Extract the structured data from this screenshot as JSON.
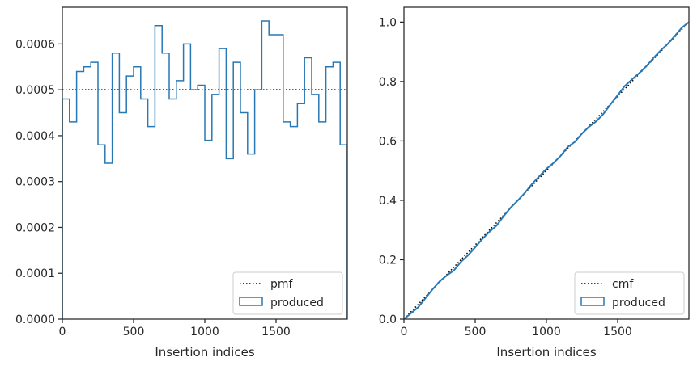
{
  "chart_data": [
    {
      "type": "histogram-step",
      "xlabel": "Insertion indices",
      "ylabel": "",
      "xlim": [
        0,
        2000
      ],
      "ylim": [
        0,
        0.00068
      ],
      "xticks": [
        0,
        500,
        1000,
        1500
      ],
      "xtick_labels": [
        "0",
        "500",
        "1000",
        "1500"
      ],
      "yticks": [
        0,
        0.0001,
        0.0002,
        0.0003,
        0.0004,
        0.0005,
        0.0006
      ],
      "ytick_labels": [
        "0.0000",
        "0.0001",
        "0.0002",
        "0.0003",
        "0.0004",
        "0.0005",
        "0.0006"
      ],
      "legend": {
        "placement": "lower-right",
        "entries": [
          "pmf",
          "produced"
        ]
      },
      "series": [
        {
          "name": "pmf",
          "style": "dotted",
          "color": "#000000",
          "x": [
            0,
            2000
          ],
          "y": [
            0.0005,
            0.0005
          ]
        },
        {
          "name": "produced",
          "style": "step",
          "color": "#2878b5",
          "bin_edges": [
            0,
            50,
            100,
            150,
            200,
            250,
            300,
            350,
            400,
            450,
            500,
            550,
            600,
            650,
            700,
            750,
            800,
            850,
            900,
            950,
            1000,
            1050,
            1100,
            1150,
            1200,
            1250,
            1300,
            1350,
            1400,
            1450,
            1500,
            1550,
            1600,
            1650,
            1700,
            1750,
            1800,
            1850,
            1900,
            1950,
            2000
          ],
          "values": [
            0.00048,
            0.00043,
            0.00054,
            0.00055,
            0.00056,
            0.00038,
            0.00034,
            0.00058,
            0.00045,
            0.00053,
            0.00055,
            0.00048,
            0.00042,
            0.00064,
            0.00058,
            0.00048,
            0.00052,
            0.0006,
            0.0005,
            0.00051,
            0.00039,
            0.00049,
            0.00059,
            0.00035,
            0.00056,
            0.00045,
            0.00036,
            0.0005,
            0.00065,
            0.00062,
            0.00062,
            0.00043,
            0.00042,
            0.00047,
            0.00057,
            0.00049,
            0.00043,
            0.00055,
            0.00056,
            0.00038
          ]
        }
      ]
    },
    {
      "type": "cumulative-step",
      "xlabel": "Insertion indices",
      "ylabel": "",
      "xlim": [
        0,
        2000
      ],
      "ylim": [
        0,
        1.05
      ],
      "xticks": [
        0,
        500,
        1000,
        1500
      ],
      "xtick_labels": [
        "0",
        "500",
        "1000",
        "1500"
      ],
      "yticks": [
        0,
        0.2,
        0.4,
        0.6,
        0.8,
        1.0
      ],
      "ytick_labels": [
        "0.0",
        "0.2",
        "0.4",
        "0.6",
        "0.8",
        "1.0"
      ],
      "legend": {
        "placement": "lower-right",
        "entries": [
          "cmf",
          "produced"
        ]
      },
      "series": [
        {
          "name": "cmf",
          "style": "dotted",
          "color": "#000000",
          "x": [
            0,
            2000
          ],
          "y": [
            0,
            1
          ]
        },
        {
          "name": "produced",
          "style": "step",
          "color": "#2878b5",
          "x": [
            0,
            50,
            100,
            150,
            200,
            250,
            300,
            350,
            400,
            450,
            500,
            550,
            600,
            650,
            700,
            750,
            800,
            850,
            900,
            950,
            1000,
            1050,
            1100,
            1150,
            1200,
            1250,
            1300,
            1350,
            1400,
            1450,
            1500,
            1550,
            1600,
            1650,
            1700,
            1750,
            1800,
            1850,
            1900,
            1950,
            2000
          ],
          "y": [
            0,
            0.02,
            0.04,
            0.07,
            0.1,
            0.127,
            0.147,
            0.164,
            0.193,
            0.215,
            0.242,
            0.27,
            0.294,
            0.315,
            0.347,
            0.376,
            0.4,
            0.426,
            0.456,
            0.481,
            0.506,
            0.526,
            0.55,
            0.58,
            0.597,
            0.625,
            0.648,
            0.666,
            0.691,
            0.723,
            0.754,
            0.785,
            0.807,
            0.828,
            0.851,
            0.879,
            0.904,
            0.926,
            0.953,
            0.981,
            1.0
          ]
        }
      ]
    }
  ]
}
